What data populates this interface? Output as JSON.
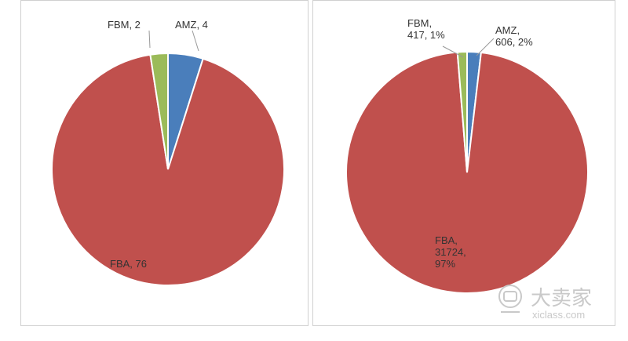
{
  "chart_data": [
    {
      "type": "pie",
      "slices": [
        {
          "label": "AMZ",
          "value": 4,
          "color": "#4a7ebb"
        },
        {
          "label": "FBA",
          "value": 76,
          "color": "#c0504d"
        },
        {
          "label": "FBM",
          "value": 2,
          "color": "#9bbb59"
        }
      ],
      "data_labels": [
        {
          "lines": [
            "FBM, 2"
          ]
        },
        {
          "lines": [
            "AMZ, 4"
          ]
        },
        {
          "lines": [
            "FBA, 76"
          ]
        }
      ]
    },
    {
      "type": "pie",
      "slices": [
        {
          "label": "AMZ",
          "value": 606,
          "color": "#4a7ebb"
        },
        {
          "label": "FBA",
          "value": 31724,
          "color": "#c0504d"
        },
        {
          "label": "FBM",
          "value": 417,
          "color": "#9bbb59"
        }
      ],
      "data_labels": [
        {
          "lines": [
            "FBM,",
            "417, 1%"
          ]
        },
        {
          "lines": [
            "AMZ,",
            "606, 2%"
          ]
        },
        {
          "lines": [
            "FBA,",
            "31724,",
            "97%"
          ]
        }
      ]
    }
  ],
  "watermark": {
    "logo_text": "大卖家",
    "site": "xiclass.com"
  }
}
